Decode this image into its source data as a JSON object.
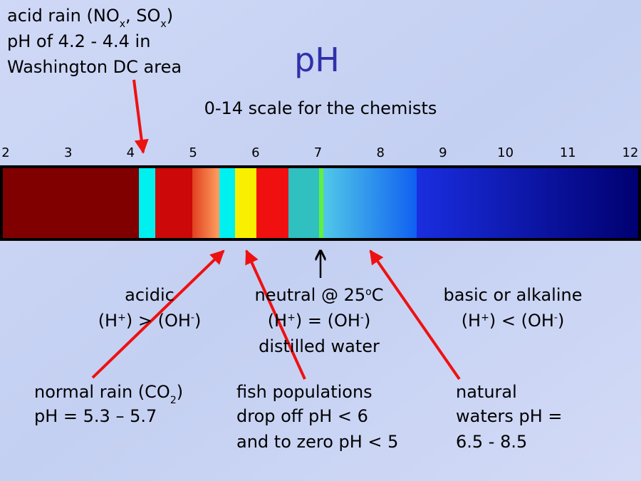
{
  "title": "pH",
  "subtitle": "0-14 scale for the chemists",
  "scale_labels": [
    2,
    3,
    4,
    5,
    6,
    7,
    8,
    9,
    10,
    11,
    12
  ],
  "acid_rain": {
    "line1": [
      "acid rain (NO",
      "x",
      ", SO",
      "x",
      ")"
    ],
    "line2": "pH of 4.2 - 4.4 in",
    "line3": "Washington DC area"
  },
  "acidic": {
    "line1": "acidic",
    "line2": [
      "(H",
      "+",
      ") > (OH",
      "-",
      ")"
    ]
  },
  "neutral": {
    "line1": [
      "neutral @ 25",
      "o",
      "C"
    ],
    "line2": [
      "(H",
      "+",
      ") = (OH",
      "-",
      ")"
    ],
    "line3": "distilled water"
  },
  "basic": {
    "line1": "basic or alkaline",
    "line2": [
      "(H",
      "+",
      ") < (OH",
      "-",
      ")"
    ]
  },
  "normal_rain": {
    "line1": [
      "normal rain (CO",
      "2",
      ")"
    ],
    "line2": "pH = 5.3 – 5.7"
  },
  "fish": {
    "line1": "fish populations",
    "line2": "drop off pH < 6",
    "line3": "and to zero pH < 5"
  },
  "natural": {
    "line1": "natural",
    "line2": "waters pH =",
    "line3": "6.5 - 8.5"
  }
}
